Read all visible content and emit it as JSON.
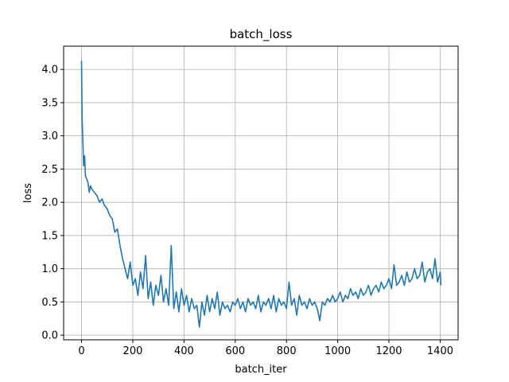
{
  "chart_data": {
    "type": "line",
    "title": "batch_loss",
    "xlabel": "batch_iter",
    "ylabel": "loss",
    "xlim": [
      -70,
      1470
    ],
    "ylim": [
      -0.07,
      4.35
    ],
    "xticks": [
      0,
      200,
      400,
      600,
      800,
      1000,
      1200,
      1400
    ],
    "xtick_labels": [
      "0",
      "200",
      "400",
      "600",
      "800",
      "1000",
      "1200",
      "1400"
    ],
    "yticks": [
      0.0,
      0.5,
      1.0,
      1.5,
      2.0,
      2.5,
      3.0,
      3.5,
      4.0
    ],
    "ytick_labels": [
      "0.0",
      "0.5",
      "1.0",
      "1.5",
      "2.0",
      "2.5",
      "3.0",
      "3.5",
      "4.0"
    ],
    "grid": true,
    "series": [
      {
        "color": "#1f77b4",
        "x": [
          0,
          2,
          5,
          8,
          12,
          15,
          20,
          25,
          30,
          35,
          40,
          50,
          60,
          70,
          80,
          90,
          100,
          110,
          120,
          130,
          140,
          150,
          160,
          170,
          180,
          190,
          200,
          210,
          220,
          230,
          240,
          250,
          260,
          270,
          280,
          290,
          300,
          310,
          320,
          330,
          340,
          350,
          360,
          370,
          380,
          390,
          400,
          410,
          420,
          430,
          440,
          450,
          460,
          470,
          480,
          490,
          500,
          510,
          520,
          530,
          540,
          550,
          560,
          570,
          580,
          590,
          600,
          610,
          620,
          630,
          640,
          650,
          660,
          670,
          680,
          690,
          700,
          710,
          720,
          730,
          740,
          750,
          760,
          770,
          780,
          790,
          800,
          810,
          820,
          830,
          840,
          850,
          860,
          870,
          880,
          890,
          900,
          910,
          920,
          930,
          940,
          950,
          960,
          970,
          980,
          990,
          1000,
          1010,
          1020,
          1030,
          1040,
          1050,
          1060,
          1070,
          1080,
          1090,
          1100,
          1110,
          1120,
          1130,
          1140,
          1150,
          1160,
          1170,
          1180,
          1190,
          1200,
          1210,
          1220,
          1230,
          1240,
          1250,
          1260,
          1270,
          1280,
          1290,
          1300,
          1310,
          1320,
          1330,
          1340,
          1350,
          1360,
          1370,
          1380,
          1390,
          1400,
          1403
        ],
        "values": [
          4.13,
          3.3,
          2.9,
          2.55,
          2.7,
          2.4,
          2.35,
          2.3,
          2.15,
          2.25,
          2.2,
          2.15,
          2.1,
          2.0,
          2.05,
          1.95,
          1.9,
          1.8,
          1.75,
          1.55,
          1.6,
          1.35,
          1.15,
          1.0,
          0.85,
          1.1,
          0.75,
          0.85,
          0.6,
          0.95,
          0.7,
          1.2,
          0.55,
          0.8,
          0.45,
          0.75,
          0.6,
          0.9,
          0.5,
          0.7,
          0.45,
          1.35,
          0.4,
          0.65,
          0.35,
          0.7,
          0.45,
          0.6,
          0.35,
          0.55,
          0.4,
          0.45,
          0.12,
          0.5,
          0.3,
          0.6,
          0.35,
          0.55,
          0.4,
          0.65,
          0.3,
          0.5,
          0.4,
          0.45,
          0.35,
          0.5,
          0.45,
          0.55,
          0.4,
          0.5,
          0.35,
          0.55,
          0.45,
          0.5,
          0.4,
          0.6,
          0.35,
          0.5,
          0.45,
          0.55,
          0.4,
          0.6,
          0.35,
          0.55,
          0.45,
          0.5,
          0.4,
          0.8,
          0.45,
          0.55,
          0.3,
          0.6,
          0.45,
          0.5,
          0.4,
          0.55,
          0.45,
          0.5,
          0.4,
          0.22,
          0.5,
          0.45,
          0.55,
          0.5,
          0.6,
          0.5,
          0.55,
          0.65,
          0.5,
          0.6,
          0.55,
          0.7,
          0.6,
          0.65,
          0.55,
          0.7,
          0.6,
          0.65,
          0.75,
          0.6,
          0.7,
          0.75,
          0.65,
          0.8,
          0.7,
          0.75,
          0.85,
          0.7,
          1.06,
          0.75,
          0.8,
          0.9,
          0.75,
          0.95,
          0.8,
          0.85,
          1.0,
          0.85,
          0.9,
          1.1,
          0.8,
          0.95,
          1.0,
          0.85,
          1.15,
          0.8,
          0.95,
          0.75
        ]
      }
    ]
  }
}
